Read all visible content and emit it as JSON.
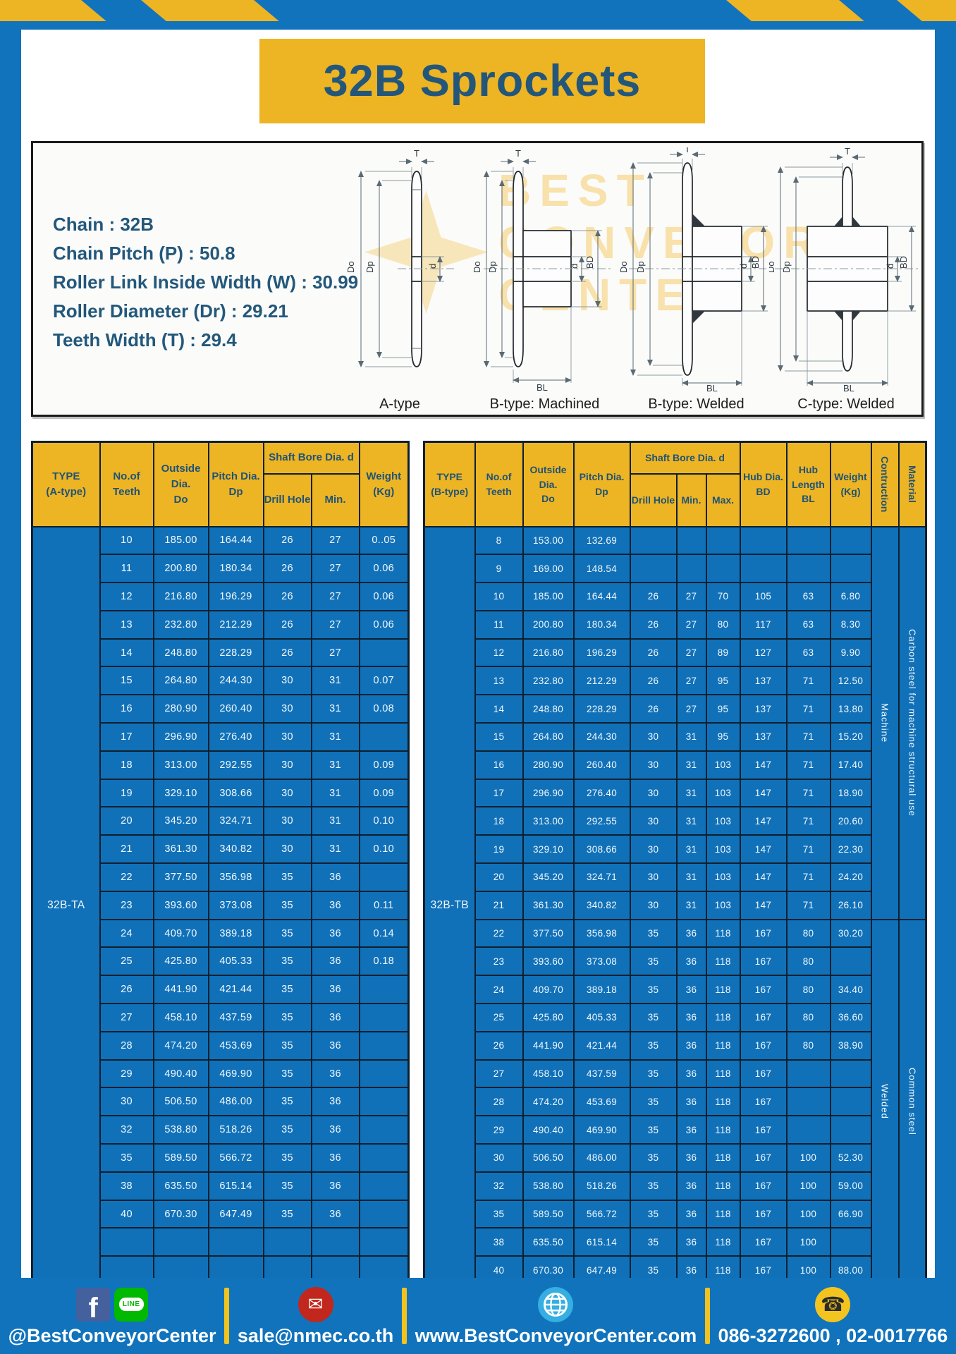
{
  "page": {
    "title": "32B Sprockets"
  },
  "specs": {
    "lines": [
      "Chain : 32B",
      "Chain Pitch (P) : 50.8",
      "Roller Link Inside Width (W) : 30.99",
      "Roller Diameter (Dr) : 29.21",
      "Teeth Width (T) : 29.4"
    ]
  },
  "diagram": {
    "captions": [
      "A-type",
      "B-type: Machined",
      "B-type: Welded",
      "C-type: Welded"
    ],
    "dim_labels": {
      "t": "T",
      "dia_o": "Do",
      "dia_p": "Dp",
      "d": "d",
      "bd": "BD",
      "bl": "BL"
    },
    "watermark": [
      "BEST",
      "CONVEYOR",
      "CENTER"
    ]
  },
  "left_table": {
    "headers": {
      "type": "TYPE\n(A-type)",
      "teeth": "No.of\nTeeth",
      "outside": "Outside\nDia.\nDo",
      "pitch": "Pitch Dia.\nDp",
      "shaft": "Shaft Bore Dia. d",
      "drill": "Drill Hole",
      "min": "Min.",
      "weight": "Weight\n(Kg)"
    },
    "type_label": "32B-TA",
    "rows": [
      [
        "10",
        "185.00",
        "164.44",
        "26",
        "27",
        "0..05"
      ],
      [
        "11",
        "200.80",
        "180.34",
        "26",
        "27",
        "0.06"
      ],
      [
        "12",
        "216.80",
        "196.29",
        "26",
        "27",
        "0.06"
      ],
      [
        "13",
        "232.80",
        "212.29",
        "26",
        "27",
        "0.06"
      ],
      [
        "14",
        "248.80",
        "228.29",
        "26",
        "27",
        ""
      ],
      [
        "15",
        "264.80",
        "244.30",
        "30",
        "31",
        "0.07"
      ],
      [
        "16",
        "280.90",
        "260.40",
        "30",
        "31",
        "0.08"
      ],
      [
        "17",
        "296.90",
        "276.40",
        "30",
        "31",
        ""
      ],
      [
        "18",
        "313.00",
        "292.55",
        "30",
        "31",
        "0.09"
      ],
      [
        "19",
        "329.10",
        "308.66",
        "30",
        "31",
        "0.09"
      ],
      [
        "20",
        "345.20",
        "324.71",
        "30",
        "31",
        "0.10"
      ],
      [
        "21",
        "361.30",
        "340.82",
        "30",
        "31",
        "0.10"
      ],
      [
        "22",
        "377.50",
        "356.98",
        "35",
        "36",
        ""
      ],
      [
        "23",
        "393.60",
        "373.08",
        "35",
        "36",
        "0.11"
      ],
      [
        "24",
        "409.70",
        "389.18",
        "35",
        "36",
        "0.14"
      ],
      [
        "25",
        "425.80",
        "405.33",
        "35",
        "36",
        "0.18"
      ],
      [
        "26",
        "441.90",
        "421.44",
        "35",
        "36",
        ""
      ],
      [
        "27",
        "458.10",
        "437.59",
        "35",
        "36",
        ""
      ],
      [
        "28",
        "474.20",
        "453.69",
        "35",
        "36",
        ""
      ],
      [
        "29",
        "490.40",
        "469.90",
        "35",
        "36",
        ""
      ],
      [
        "30",
        "506.50",
        "486.00",
        "35",
        "36",
        ""
      ],
      [
        "32",
        "538.80",
        "518.26",
        "35",
        "36",
        ""
      ],
      [
        "35",
        "589.50",
        "566.72",
        "35",
        "36",
        ""
      ],
      [
        "38",
        "635.50",
        "615.14",
        "35",
        "36",
        ""
      ],
      [
        "40",
        "670.30",
        "647.49",
        "35",
        "36",
        ""
      ],
      [
        "",
        "",
        "",
        "",
        "",
        ""
      ],
      [
        "",
        "",
        "",
        "",
        "",
        ""
      ]
    ]
  },
  "right_table": {
    "headers": {
      "type": "TYPE\n(B-type)",
      "teeth": "No.of\nTeeth",
      "outside": "Outside\nDia.\nDo",
      "pitch": "Pitch Dia.\nDp",
      "shaft": "Shaft Bore Dia. d",
      "drill": "Drill Hole",
      "min": "Min.",
      "max": "Max.",
      "hub_dia": "Hub Dia.\nBD",
      "hub_len": "Hub\nLength\nBL",
      "weight": "Weight\n(Kg)",
      "construction": "Contruction",
      "material": "Material"
    },
    "type_label": "32B-TB",
    "groups": [
      {
        "construction": "Machine",
        "material": "Carbon steel for machine structural use",
        "span": 14
      },
      {
        "construction": "Welded",
        "material": "Common steel",
        "span": 13
      }
    ],
    "rows": [
      [
        "8",
        "153.00",
        "132.69",
        "",
        "",
        "",
        "",
        "",
        ""
      ],
      [
        "9",
        "169.00",
        "148.54",
        "",
        "",
        "",
        "",
        "",
        ""
      ],
      [
        "10",
        "185.00",
        "164.44",
        "26",
        "27",
        "70",
        "105",
        "63",
        "6.80"
      ],
      [
        "11",
        "200.80",
        "180.34",
        "26",
        "27",
        "80",
        "117",
        "63",
        "8.30"
      ],
      [
        "12",
        "216.80",
        "196.29",
        "26",
        "27",
        "89",
        "127",
        "63",
        "9.90"
      ],
      [
        "13",
        "232.80",
        "212.29",
        "26",
        "27",
        "95",
        "137",
        "71",
        "12.50"
      ],
      [
        "14",
        "248.80",
        "228.29",
        "26",
        "27",
        "95",
        "137",
        "71",
        "13.80"
      ],
      [
        "15",
        "264.80",
        "244.30",
        "30",
        "31",
        "95",
        "137",
        "71",
        "15.20"
      ],
      [
        "16",
        "280.90",
        "260.40",
        "30",
        "31",
        "103",
        "147",
        "71",
        "17.40"
      ],
      [
        "17",
        "296.90",
        "276.40",
        "30",
        "31",
        "103",
        "147",
        "71",
        "18.90"
      ],
      [
        "18",
        "313.00",
        "292.55",
        "30",
        "31",
        "103",
        "147",
        "71",
        "20.60"
      ],
      [
        "19",
        "329.10",
        "308.66",
        "30",
        "31",
        "103",
        "147",
        "71",
        "22.30"
      ],
      [
        "20",
        "345.20",
        "324.71",
        "30",
        "31",
        "103",
        "147",
        "71",
        "24.20"
      ],
      [
        "21",
        "361.30",
        "340.82",
        "30",
        "31",
        "103",
        "147",
        "71",
        "26.10"
      ],
      [
        "22",
        "377.50",
        "356.98",
        "35",
        "36",
        "118",
        "167",
        "80",
        "30.20"
      ],
      [
        "23",
        "393.60",
        "373.08",
        "35",
        "36",
        "118",
        "167",
        "80",
        ""
      ],
      [
        "24",
        "409.70",
        "389.18",
        "35",
        "36",
        "118",
        "167",
        "80",
        "34.40"
      ],
      [
        "25",
        "425.80",
        "405.33",
        "35",
        "36",
        "118",
        "167",
        "80",
        "36.60"
      ],
      [
        "26",
        "441.90",
        "421.44",
        "35",
        "36",
        "118",
        "167",
        "80",
        "38.90"
      ],
      [
        "27",
        "458.10",
        "437.59",
        "35",
        "36",
        "118",
        "167",
        "",
        ""
      ],
      [
        "28",
        "474.20",
        "453.69",
        "35",
        "36",
        "118",
        "167",
        "",
        ""
      ],
      [
        "29",
        "490.40",
        "469.90",
        "35",
        "36",
        "118",
        "167",
        "",
        ""
      ],
      [
        "30",
        "506.50",
        "486.00",
        "35",
        "36",
        "118",
        "167",
        "100",
        "52.30"
      ],
      [
        "32",
        "538.80",
        "518.26",
        "35",
        "36",
        "118",
        "167",
        "100",
        "59.00"
      ],
      [
        "35",
        "589.50",
        "566.72",
        "35",
        "36",
        "118",
        "167",
        "100",
        "66.90"
      ],
      [
        "38",
        "635.50",
        "615.14",
        "35",
        "36",
        "118",
        "167",
        "100",
        ""
      ],
      [
        "40",
        "670.30",
        "647.49",
        "35",
        "36",
        "118",
        "167",
        "100",
        "88.00"
      ]
    ]
  },
  "footer": {
    "fb_letter": "f",
    "line_label": "LINE",
    "social_handle": "@BestConveyorCenter",
    "mail_glyph": "✉",
    "email": "sale@nmec.co.th",
    "website": "www.BestConveyorCenter.com",
    "phone_glyph": "☎",
    "phone": "086-3272600 , 02-0017766"
  },
  "colors": {
    "frame_blue": "#1173BC",
    "cell_blue": "#1171B8",
    "accent_yellow": "#EDB424",
    "header_text_blue": "#1F5376",
    "border_navy": "#0C2030",
    "facebook_blue": "#44619D",
    "line_green": "#00B900",
    "email_red": "#C2271D",
    "globe_blue": "#35AEE2",
    "phone_yellow": "#F3C41F"
  }
}
